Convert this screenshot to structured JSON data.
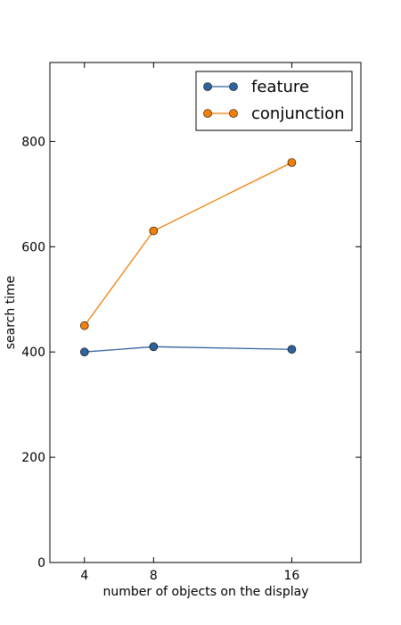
{
  "chart_data": {
    "type": "line",
    "title": "",
    "xlabel": "number of objects on the display",
    "ylabel": "search time",
    "x": [
      4,
      8,
      16
    ],
    "x_tick_labels": [
      "4",
      "8",
      "16"
    ],
    "xlim": [
      2,
      20
    ],
    "ylim": [
      0,
      950
    ],
    "y_ticks": [
      0,
      200,
      400,
      600,
      800
    ],
    "grid": false,
    "legend_position": "top-right",
    "series": [
      {
        "name": "feature",
        "color": "#30629b",
        "marker": "circle",
        "values": [
          400,
          410,
          405
        ]
      },
      {
        "name": "conjunction",
        "color": "#f07f09",
        "marker": "circle",
        "values": [
          450,
          630,
          760
        ]
      }
    ]
  }
}
